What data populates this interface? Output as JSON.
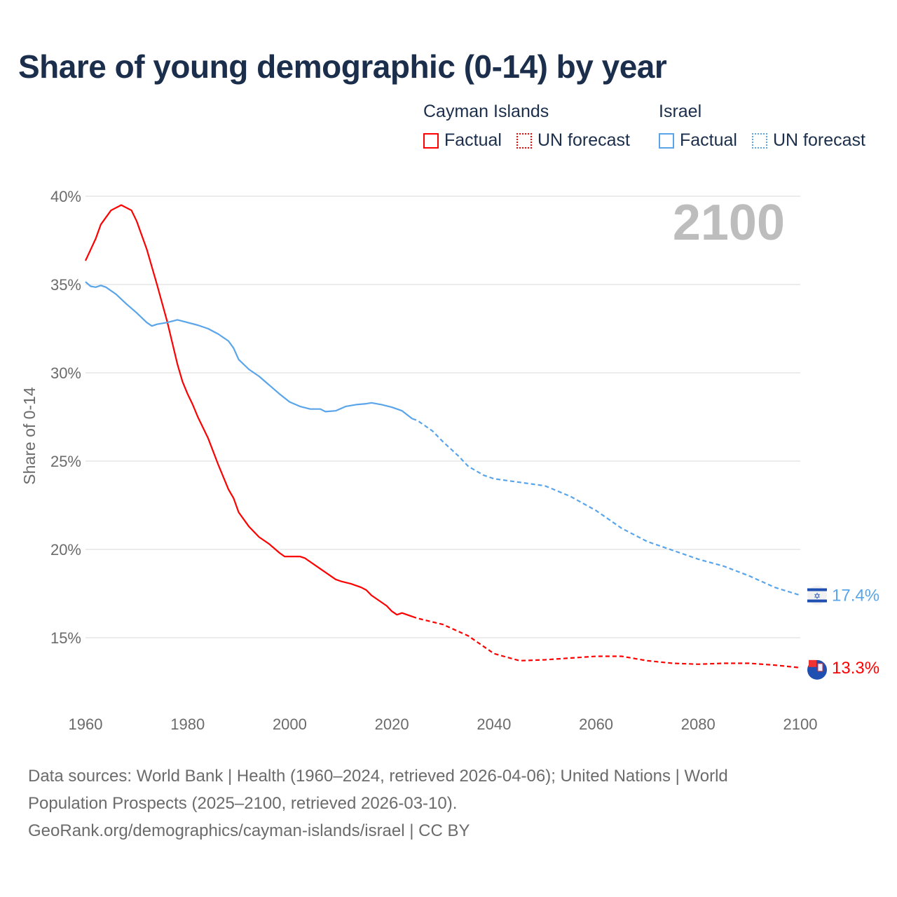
{
  "chart_data": {
    "type": "line",
    "title": "Share of young demographic (0-14) by year",
    "ylabel": "Share of 0-14",
    "xlabel": "",
    "xlim": [
      1960,
      2100
    ],
    "ylim": [
      11,
      40
    ],
    "x_ticks": [
      "1960",
      "1980",
      "2000",
      "2020",
      "2040",
      "2060",
      "2080",
      "2100"
    ],
    "y_ticks": [
      "15%",
      "20%",
      "25%",
      "30%",
      "35%",
      "40%"
    ],
    "y_tick_values": [
      15,
      20,
      25,
      30,
      35,
      40
    ],
    "x_tick_values": [
      1960,
      1980,
      2000,
      2020,
      2040,
      2060,
      2080,
      2100
    ],
    "year_annotation": "2100",
    "legend": {
      "placement": "top-right",
      "groups": [
        {
          "name": "Cayman Islands",
          "factual": "Factual",
          "forecast": "UN forecast"
        },
        {
          "name": "Israel",
          "factual": "Factual",
          "forecast": "UN forecast"
        }
      ]
    },
    "series": [
      {
        "name": "Cayman Islands",
        "color": "#ff0000",
        "end_label": "13.3%",
        "factual": [
          [
            1960,
            36.35
          ],
          [
            1962,
            37.6
          ],
          [
            1963,
            38.4
          ],
          [
            1965,
            39.2
          ],
          [
            1967,
            39.5
          ],
          [
            1969,
            39.2
          ],
          [
            1970,
            38.6
          ],
          [
            1972,
            37.0
          ],
          [
            1974,
            35.0
          ],
          [
            1976,
            32.9
          ],
          [
            1978,
            30.5
          ],
          [
            1979,
            29.5
          ],
          [
            1980,
            28.8
          ],
          [
            1981,
            28.2
          ],
          [
            1982,
            27.5
          ],
          [
            1984,
            26.3
          ],
          [
            1986,
            24.8
          ],
          [
            1988,
            23.4
          ],
          [
            1989,
            22.9
          ],
          [
            1990,
            22.1
          ],
          [
            1992,
            21.3
          ],
          [
            1994,
            20.7
          ],
          [
            1996,
            20.3
          ],
          [
            1998,
            19.8
          ],
          [
            1999,
            19.6
          ],
          [
            2002,
            19.6
          ],
          [
            2003,
            19.5
          ],
          [
            2006,
            18.9
          ],
          [
            2009,
            18.3
          ],
          [
            2010,
            18.2
          ],
          [
            2012,
            18.05
          ],
          [
            2014,
            17.85
          ],
          [
            2015,
            17.7
          ],
          [
            2016,
            17.4
          ],
          [
            2019,
            16.8
          ],
          [
            2020,
            16.5
          ],
          [
            2021,
            16.3
          ],
          [
            2022,
            16.4
          ],
          [
            2024,
            16.2
          ]
        ],
        "forecast": [
          [
            2024,
            16.2
          ],
          [
            2025,
            16.1
          ],
          [
            2030,
            15.75
          ],
          [
            2035,
            15.1
          ],
          [
            2037,
            14.7
          ],
          [
            2040,
            14.1
          ],
          [
            2045,
            13.7
          ],
          [
            2050,
            13.75
          ],
          [
            2055,
            13.85
          ],
          [
            2060,
            13.95
          ],
          [
            2065,
            13.95
          ],
          [
            2070,
            13.7
          ],
          [
            2075,
            13.55
          ],
          [
            2080,
            13.5
          ],
          [
            2085,
            13.55
          ],
          [
            2090,
            13.55
          ],
          [
            2095,
            13.45
          ],
          [
            2100,
            13.3
          ]
        ]
      },
      {
        "name": "Israel",
        "color": "#5aa5ea",
        "end_label": "17.4%",
        "factual": [
          [
            1960,
            35.15
          ],
          [
            1961,
            34.9
          ],
          [
            1962,
            34.85
          ],
          [
            1963,
            34.95
          ],
          [
            1964,
            34.85
          ],
          [
            1966,
            34.45
          ],
          [
            1968,
            33.9
          ],
          [
            1970,
            33.4
          ],
          [
            1972,
            32.85
          ],
          [
            1973,
            32.65
          ],
          [
            1974,
            32.75
          ],
          [
            1976,
            32.85
          ],
          [
            1978,
            33.0
          ],
          [
            1980,
            32.85
          ],
          [
            1982,
            32.7
          ],
          [
            1984,
            32.5
          ],
          [
            1986,
            32.2
          ],
          [
            1988,
            31.8
          ],
          [
            1989,
            31.4
          ],
          [
            1990,
            30.75
          ],
          [
            1992,
            30.2
          ],
          [
            1994,
            29.8
          ],
          [
            1996,
            29.3
          ],
          [
            1998,
            28.8
          ],
          [
            2000,
            28.35
          ],
          [
            2002,
            28.1
          ],
          [
            2004,
            27.95
          ],
          [
            2006,
            27.95
          ],
          [
            2007,
            27.8
          ],
          [
            2009,
            27.85
          ],
          [
            2011,
            28.1
          ],
          [
            2013,
            28.2
          ],
          [
            2015,
            28.25
          ],
          [
            2016,
            28.3
          ],
          [
            2018,
            28.2
          ],
          [
            2020,
            28.05
          ],
          [
            2022,
            27.85
          ],
          [
            2024,
            27.4
          ]
        ],
        "forecast": [
          [
            2024,
            27.4
          ],
          [
            2025,
            27.3
          ],
          [
            2028,
            26.7
          ],
          [
            2030,
            26.1
          ],
          [
            2033,
            25.3
          ],
          [
            2035,
            24.7
          ],
          [
            2038,
            24.2
          ],
          [
            2040,
            24.0
          ],
          [
            2045,
            23.8
          ],
          [
            2050,
            23.6
          ],
          [
            2055,
            23.0
          ],
          [
            2060,
            22.2
          ],
          [
            2065,
            21.2
          ],
          [
            2070,
            20.45
          ],
          [
            2075,
            19.95
          ],
          [
            2080,
            19.45
          ],
          [
            2085,
            19.05
          ],
          [
            2090,
            18.5
          ],
          [
            2095,
            17.85
          ],
          [
            2100,
            17.4
          ]
        ]
      }
    ]
  },
  "footer": {
    "line1": "Data sources: World Bank | Health (1960–2024, retrieved 2026-04-06); United Nations | World",
    "line2": "Population Prospects (2025–2100, retrieved 2026-03-10).",
    "line3": "GeoRank.org/demographics/cayman-islands/israel | CC BY"
  }
}
